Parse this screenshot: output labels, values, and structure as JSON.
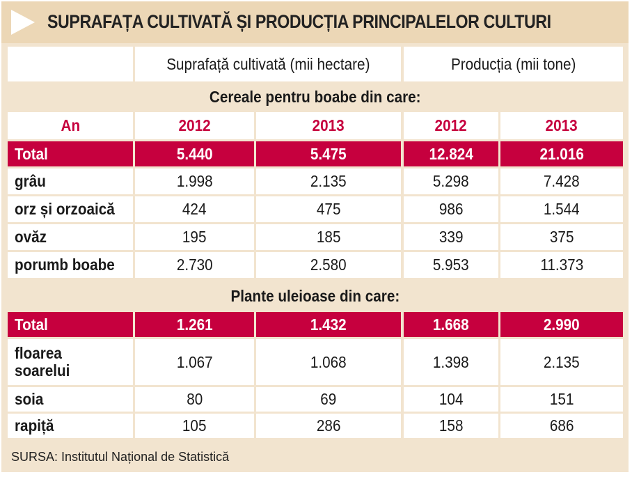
{
  "title": "SUPRAFAȚA CULTIVATĂ ȘI PRODUCȚIA PRINCIPALELOR CULTURI",
  "headers": {
    "area": "Suprafață cultivată (mii hectare)",
    "production": "Producția (mii tone)",
    "year_label": "An",
    "years": [
      "2012",
      "2013",
      "2012",
      "2013"
    ]
  },
  "sections": [
    {
      "title": "Cereale pentru boabe din care:",
      "total": {
        "label": "Total",
        "values": [
          "5.440",
          "5.475",
          "12.824",
          "21.016"
        ]
      },
      "rows": [
        {
          "label": "grâu",
          "values": [
            "1.998",
            "2.135",
            "5.298",
            "7.428"
          ]
        },
        {
          "label": "orz și orzoaică",
          "values": [
            "424",
            "475",
            "986",
            "1.544"
          ]
        },
        {
          "label": "ovăz",
          "values": [
            "195",
            "185",
            "339",
            "375"
          ]
        },
        {
          "label": "porumb boabe",
          "values": [
            "2.730",
            "2.580",
            "5.953",
            "11.373"
          ]
        }
      ]
    },
    {
      "title": "Plante uleioase din care:",
      "total": {
        "label": "Total",
        "values": [
          "1.261",
          "1.432",
          "1.668",
          "2.990"
        ]
      },
      "rows": [
        {
          "label": "floarea soarelui",
          "label_lines": [
            "floarea",
            "soarelui"
          ],
          "values": [
            "1.067",
            "1.068",
            "1.398",
            "2.135"
          ]
        },
        {
          "label": "soia",
          "values": [
            "80",
            "69",
            "104",
            "151"
          ]
        },
        {
          "label": "rapiță",
          "values": [
            "105",
            "286",
            "158",
            "686"
          ]
        }
      ]
    }
  ],
  "source": "SURSA: Institutul Național de Statistică",
  "colors": {
    "accent_red": "#c6003e",
    "background": "#f2e4cf",
    "title_bar": "#ecd7b6"
  }
}
